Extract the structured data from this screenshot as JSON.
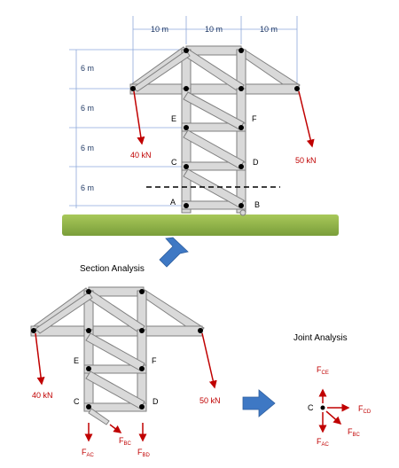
{
  "dimensions": {
    "horizontal": [
      "10 m",
      "10 m",
      "10 m"
    ],
    "vertical": [
      "6 m",
      "6 m",
      "6 m",
      "6 m"
    ]
  },
  "top_truss": {
    "joints": {
      "E": "E",
      "F": "F",
      "C": "C",
      "D": "D",
      "A": "A",
      "B": "B"
    },
    "loads": {
      "left": "40 kN",
      "right": "50 kN"
    }
  },
  "section": {
    "title": "Section Analysis",
    "joints": {
      "E": "E",
      "F": "F",
      "C": "C",
      "D": "D"
    },
    "loads": {
      "left": "40 kN",
      "right": "50 kN"
    },
    "forces": {
      "ac": {
        "main": "F",
        "sub": "AC"
      },
      "bc": {
        "main": "F",
        "sub": "BC"
      },
      "bd": {
        "main": "F",
        "sub": "BD"
      }
    }
  },
  "joint": {
    "title": "Joint Analysis",
    "node": "C",
    "forces": {
      "ce": {
        "main": "F",
        "sub": "CE"
      },
      "cd": {
        "main": "F",
        "sub": "CD"
      },
      "bc": {
        "main": "F",
        "sub": "BC"
      },
      "ac": {
        "main": "F",
        "sub": "AC"
      }
    }
  },
  "colors": {
    "member_fill": "#d9d9d9",
    "member_stroke": "#7f7f7f",
    "load_arrow": "#c00000",
    "ground": "#8fb24a",
    "process_arrow": "#3e78c4",
    "dimension_line": "#8ea9db"
  }
}
